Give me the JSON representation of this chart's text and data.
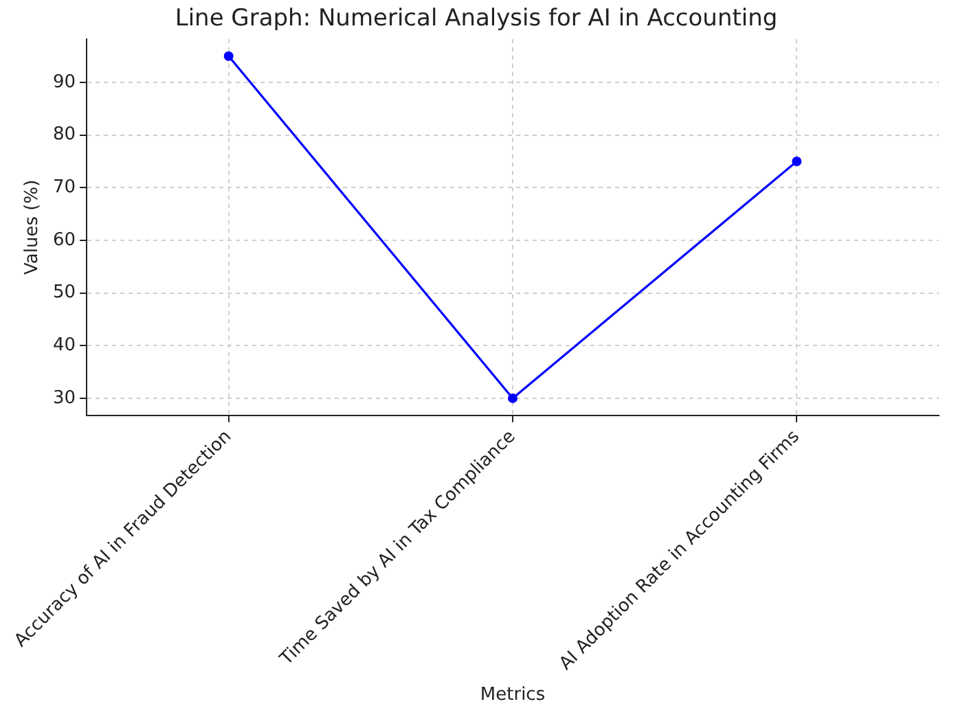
{
  "chart_data": {
    "type": "line",
    "title": "Line Graph: Numerical Analysis for AI in Accounting",
    "xlabel": "Metrics",
    "ylabel": "Values (%)",
    "categories": [
      "Accuracy of AI in Fraud Detection",
      "Time Saved by AI in Tax Compliance",
      "AI Adoption Rate in Accounting Firms"
    ],
    "series": [
      {
        "color": "#0000ff",
        "values": [
          95,
          30,
          75
        ]
      }
    ],
    "ylim": [
      26.75,
      98.25
    ],
    "yticks": [
      30,
      40,
      50,
      60,
      70,
      80,
      90
    ],
    "grid": true,
    "legend": false,
    "marker": "circle",
    "line_style": "solid"
  }
}
